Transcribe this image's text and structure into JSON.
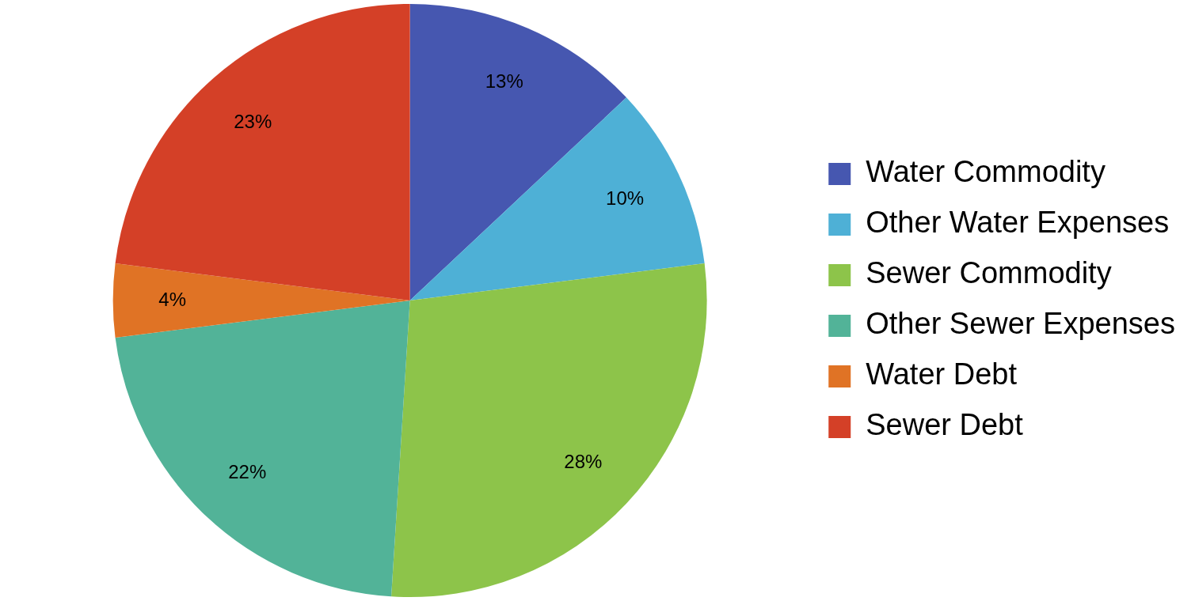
{
  "chart_data": {
    "type": "pie",
    "categories": [
      "Water Commodity",
      "Other Water Expenses",
      "Sewer Commodity",
      "Other Sewer Expenses",
      "Water Debt",
      "Sewer Debt"
    ],
    "values": [
      13,
      10,
      28,
      22,
      4,
      23
    ],
    "colors": [
      "#4657b0",
      "#4eb0d6",
      "#8dc44a",
      "#52b398",
      "#e07325",
      "#d44027"
    ],
    "value_labels": [
      "13%",
      "10%",
      "28%",
      "22%",
      "4%",
      "23%"
    ],
    "legend": "right"
  }
}
